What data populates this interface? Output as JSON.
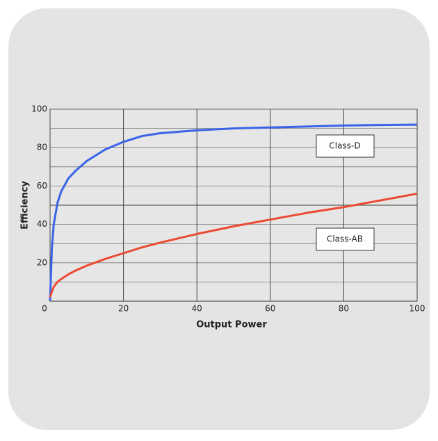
{
  "chart_data": {
    "type": "line",
    "x_label": "Output Power",
    "y_label": "Efficiency",
    "x": [
      0,
      0.5,
      1,
      2,
      3,
      5,
      7,
      10,
      15,
      20,
      25,
      30,
      40,
      50,
      60,
      70,
      80,
      90,
      100
    ],
    "series": [
      {
        "name": "Class-D",
        "color": "#3a63e8",
        "values": [
          0,
          28,
          40,
          51,
          57,
          64,
          68,
          73,
          79,
          83,
          86,
          87.5,
          89,
          90,
          90.5,
          91,
          91.5,
          91.8,
          92
        ]
      },
      {
        "name": "Class-AB",
        "color": "#ec4a33",
        "values": [
          2,
          5,
          7.5,
          10,
          11.5,
          14,
          16,
          18.5,
          22,
          25,
          28,
          30.5,
          35,
          39,
          42.5,
          46,
          49,
          52.5,
          56
        ]
      }
    ],
    "xlim": [
      0,
      100
    ],
    "ylim": [
      0,
      100
    ],
    "xticks": [
      0,
      20,
      40,
      60,
      80,
      100
    ],
    "yticks": [
      20,
      40,
      60,
      80,
      100
    ],
    "yminor": [
      10,
      30,
      50,
      70,
      90
    ],
    "grid": true
  }
}
